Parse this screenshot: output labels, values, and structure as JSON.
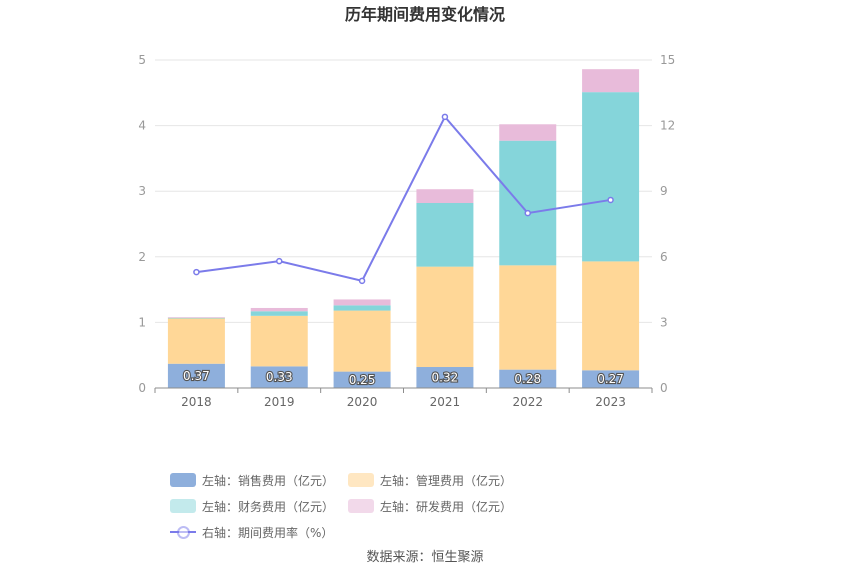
{
  "chart_data": {
    "type": "bar",
    "title": "历年期间费用变化情况",
    "categories": [
      "2018",
      "2019",
      "2020",
      "2021",
      "2022",
      "2023"
    ],
    "left_axis": {
      "min": 0,
      "max": 5,
      "ticks": [
        "0",
        "1",
        "2",
        "3",
        "4",
        "5"
      ]
    },
    "right_axis": {
      "min": 0,
      "max": 15,
      "ticks": [
        "0",
        "3",
        "6",
        "9",
        "12",
        "15"
      ]
    },
    "stacked": true,
    "series": [
      {
        "name": "左轴：销售费用（亿元）",
        "axis": "left",
        "color": "#8eafdc",
        "values": [
          0.37,
          0.33,
          0.25,
          0.32,
          0.28,
          0.27
        ],
        "labels": [
          "0.37",
          "0.33",
          "0.25",
          "0.32",
          "0.28",
          "0.27"
        ]
      },
      {
        "name": "左轴：管理费用（亿元）",
        "axis": "left",
        "color": "#ffd797",
        "values": [
          0.69,
          0.77,
          0.93,
          1.53,
          1.59,
          1.66
        ]
      },
      {
        "name": "左轴：财务费用（亿元）",
        "axis": "left",
        "color": "#85d5da",
        "values": [
          0.01,
          0.07,
          0.08,
          0.97,
          1.9,
          2.58
        ]
      },
      {
        "name": "左轴：研发费用（亿元）",
        "axis": "left",
        "color": "#e8bbda",
        "values": [
          0.01,
          0.05,
          0.09,
          0.21,
          0.25,
          0.35
        ]
      }
    ],
    "line_series": {
      "name": "右轴：期间费用率（%）",
      "axis": "right",
      "color": "#7b7bea",
      "values": [
        5.3,
        5.8,
        4.9,
        12.4,
        8.0,
        8.6
      ]
    },
    "grid": true,
    "legend_position": "bottom"
  },
  "legend_swatch_colors": [
    "#8eafdc",
    "#ffe7c2",
    "#c3eaec",
    "#f2d9ea"
  ],
  "source": "数据来源：恒生聚源"
}
